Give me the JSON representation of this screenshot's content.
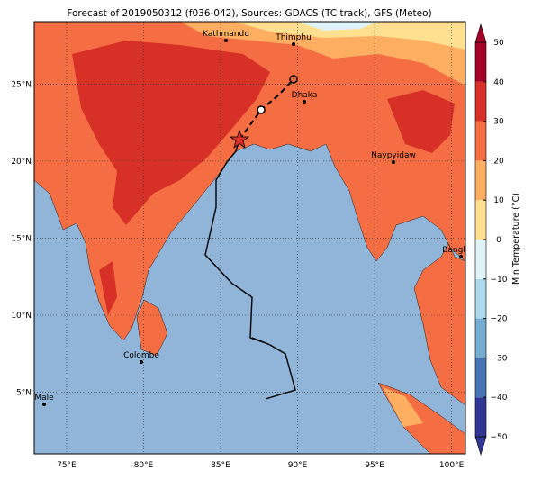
{
  "title": "Forecast of 2019050312 (f036-042), Sources: GDACS (TC track), GFS (Meteo)",
  "map": {
    "lonlim": [
      72.9,
      100.9
    ],
    "latlim": [
      1.0,
      29.05
    ],
    "lonticks": [
      {
        "value": 75,
        "label": "75°E"
      },
      {
        "value": 80,
        "label": "80°E"
      },
      {
        "value": 85,
        "label": "85°E"
      },
      {
        "value": 90,
        "label": "90°E"
      },
      {
        "value": 95,
        "label": "95°E"
      },
      {
        "value": 100,
        "label": "100°E"
      }
    ],
    "latticks": [
      {
        "value": 5,
        "label": "5°N"
      },
      {
        "value": 10,
        "label": "10°N"
      },
      {
        "value": 15,
        "label": "15°N"
      },
      {
        "value": 20,
        "label": "20°N"
      },
      {
        "value": 25,
        "label": "25°N"
      }
    ],
    "cities": [
      "Kathmandu",
      "Thimphu",
      "Dhaka",
      "Naypyidaw",
      "Bangko",
      "Colombo",
      "Male"
    ]
  },
  "colorbar": {
    "label": "Min Temperature (°C)",
    "lim": [
      -50,
      50
    ],
    "ticks": [
      {
        "value": -50,
        "label": "−50"
      },
      {
        "value": -40,
        "label": "−40"
      },
      {
        "value": -30,
        "label": "−30"
      },
      {
        "value": -20,
        "label": "−20"
      },
      {
        "value": -10,
        "label": "−10"
      },
      0,
      10,
      20,
      30,
      40,
      50
    ],
    "colors": [
      "#313695",
      "#4575b4",
      "#74add1",
      "#abd9e9",
      "#e0f3f8",
      "#fee090",
      "#fdae61",
      "#f46d43",
      "#d73027",
      "#a50026"
    ]
  }
}
